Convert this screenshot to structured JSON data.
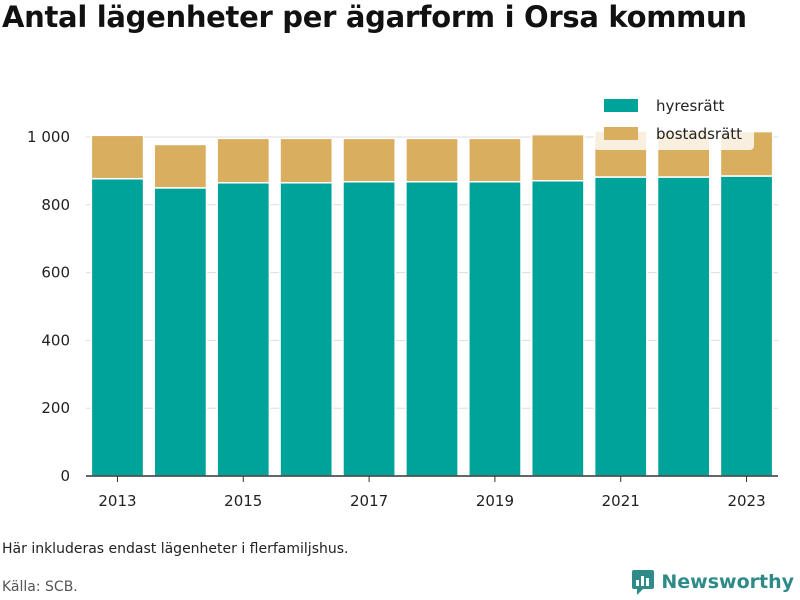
{
  "title": "Antal lägenheter per ägarform i Orsa kommun",
  "note": "Här inkluderas endast lägenheter i flerfamiljshus.",
  "source": "Källa: SCB.",
  "brand": "Newsworthy",
  "colors": {
    "hyresratt": "#00a39a",
    "bostadsratt": "#d9ae5f",
    "grid": "#dddddd",
    "axis": "#333333",
    "brand": "#2e8b8a"
  },
  "chart_data": {
    "type": "bar",
    "stacked": true,
    "categories": [
      "2013",
      "2014",
      "2015",
      "2016",
      "2017",
      "2018",
      "2019",
      "2020",
      "2021",
      "2022",
      "2023"
    ],
    "series": [
      {
        "name": "hyresrätt",
        "color": "#00a39a",
        "values": [
          877,
          850,
          865,
          865,
          868,
          868,
          868,
          871,
          882,
          882,
          885
        ]
      },
      {
        "name": "bostadsrätt",
        "color": "#d9ae5f",
        "values": [
          128,
          128,
          131,
          131,
          128,
          128,
          128,
          136,
          136,
          136,
          131
        ]
      }
    ],
    "xtick_labels": [
      "2013",
      "2015",
      "2017",
      "2019",
      "2021",
      "2023"
    ],
    "ytick_labels": [
      "0",
      "200",
      "400",
      "600",
      "800",
      "1 000"
    ],
    "ytick_values": [
      0,
      200,
      400,
      600,
      800,
      1000
    ],
    "ylim": [
      0,
      1000
    ],
    "grid": true,
    "legend_position": "top-right"
  }
}
